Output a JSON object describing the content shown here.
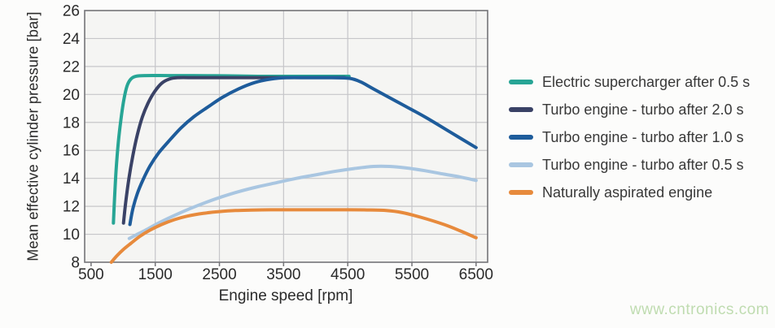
{
  "page": {
    "background": "#fcfcfb"
  },
  "axes": {
    "text_color": "#2a2a2a",
    "grid_color": "#c6c6c9",
    "border_color": "#747478",
    "plot_bg": "#f5f5f3"
  },
  "watermark": {
    "text": "www.cntronics.com",
    "color": "#bfdcb0"
  },
  "chart_data": {
    "type": "line",
    "title": "",
    "xlabel": "Engine speed [rpm]",
    "ylabel": "Mean effective cylinder pressure [bar]",
    "xlim": [
      400,
      6680
    ],
    "ylim": [
      8,
      26
    ],
    "x_ticks": [
      500,
      1500,
      2500,
      3500,
      4500,
      5500,
      6500
    ],
    "y_ticks": [
      8,
      10,
      12,
      14,
      16,
      18,
      20,
      22,
      24,
      26
    ],
    "grid": true,
    "legend_position": "right",
    "line_width": 4,
    "series": [
      {
        "name": "Electric supercharger after 0.5 s",
        "color": "#27a595",
        "points": [
          [
            848,
            10.8
          ],
          [
            865,
            12.5
          ],
          [
            890,
            14.6
          ],
          [
            925,
            16.6
          ],
          [
            965,
            18.2
          ],
          [
            1010,
            19.6
          ],
          [
            1060,
            20.6
          ],
          [
            1120,
            21.1
          ],
          [
            1200,
            21.3
          ],
          [
            1350,
            21.35
          ],
          [
            1700,
            21.35
          ],
          [
            2100,
            21.35
          ],
          [
            2600,
            21.33
          ],
          [
            3100,
            21.3
          ],
          [
            3600,
            21.3
          ],
          [
            4100,
            21.3
          ],
          [
            4520,
            21.3
          ]
        ]
      },
      {
        "name": "Turbo engine - turbo after 2.0 s",
        "color": "#3a4266",
        "points": [
          [
            1005,
            10.8
          ],
          [
            1040,
            12.3
          ],
          [
            1090,
            14.0
          ],
          [
            1150,
            15.6
          ],
          [
            1220,
            17.1
          ],
          [
            1300,
            18.4
          ],
          [
            1390,
            19.4
          ],
          [
            1490,
            20.2
          ],
          [
            1600,
            20.8
          ],
          [
            1720,
            21.1
          ],
          [
            1850,
            21.2
          ],
          [
            2150,
            21.2
          ],
          [
            2650,
            21.2
          ],
          [
            3150,
            21.2
          ],
          [
            3650,
            21.2
          ],
          [
            4100,
            21.2
          ],
          [
            4450,
            21.2
          ]
        ]
      },
      {
        "name": "Turbo engine - turbo after 1.0 s",
        "color": "#1e5c9b",
        "points": [
          [
            1105,
            10.7
          ],
          [
            1150,
            11.8
          ],
          [
            1220,
            12.9
          ],
          [
            1310,
            13.9
          ],
          [
            1420,
            14.9
          ],
          [
            1550,
            15.8
          ],
          [
            1700,
            16.6
          ],
          [
            1900,
            17.6
          ],
          [
            2100,
            18.4
          ],
          [
            2320,
            19.1
          ],
          [
            2550,
            19.8
          ],
          [
            2800,
            20.4
          ],
          [
            3050,
            20.85
          ],
          [
            3300,
            21.1
          ],
          [
            3550,
            21.2
          ],
          [
            3900,
            21.2
          ],
          [
            4250,
            21.2
          ],
          [
            4530,
            21.15
          ],
          [
            4700,
            20.9
          ],
          [
            4900,
            20.4
          ],
          [
            5300,
            19.4
          ],
          [
            5700,
            18.4
          ],
          [
            6100,
            17.3
          ],
          [
            6500,
            16.2
          ]
        ]
      },
      {
        "name": "Turbo engine - turbo after 0.5 s",
        "color": "#a9c6e1",
        "points": [
          [
            1095,
            9.7
          ],
          [
            1200,
            9.95
          ],
          [
            1350,
            10.3
          ],
          [
            1550,
            10.8
          ],
          [
            1800,
            11.35
          ],
          [
            2050,
            11.85
          ],
          [
            2300,
            12.3
          ],
          [
            2550,
            12.7
          ],
          [
            2800,
            13.05
          ],
          [
            3100,
            13.4
          ],
          [
            3400,
            13.7
          ],
          [
            3700,
            14.0
          ],
          [
            4000,
            14.25
          ],
          [
            4300,
            14.5
          ],
          [
            4600,
            14.7
          ],
          [
            4900,
            14.85
          ],
          [
            5150,
            14.85
          ],
          [
            5400,
            14.75
          ],
          [
            5700,
            14.55
          ],
          [
            6000,
            14.3
          ],
          [
            6250,
            14.1
          ],
          [
            6500,
            13.85
          ]
        ]
      },
      {
        "name": "Naturally aspirated engine",
        "color": "#e78a3c",
        "points": [
          [
            815,
            8.0
          ],
          [
            900,
            8.45
          ],
          [
            1000,
            8.9
          ],
          [
            1120,
            9.35
          ],
          [
            1260,
            9.85
          ],
          [
            1420,
            10.3
          ],
          [
            1600,
            10.7
          ],
          [
            1800,
            11.05
          ],
          [
            2000,
            11.3
          ],
          [
            2250,
            11.5
          ],
          [
            2500,
            11.62
          ],
          [
            2750,
            11.7
          ],
          [
            3000,
            11.73
          ],
          [
            3300,
            11.75
          ],
          [
            3700,
            11.75
          ],
          [
            4100,
            11.75
          ],
          [
            4500,
            11.75
          ],
          [
            4800,
            11.74
          ],
          [
            5100,
            11.7
          ],
          [
            5350,
            11.55
          ],
          [
            5650,
            11.2
          ],
          [
            6000,
            10.7
          ],
          [
            6250,
            10.25
          ],
          [
            6500,
            9.75
          ]
        ]
      }
    ]
  }
}
